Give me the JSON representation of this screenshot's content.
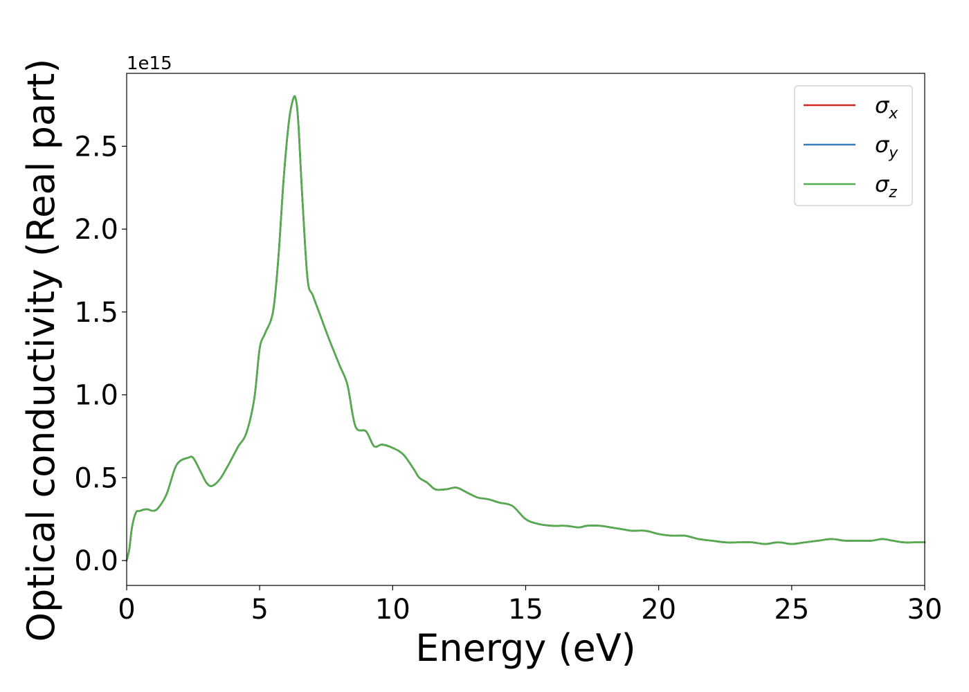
{
  "chart_data": {
    "type": "line",
    "xlabel": "Energy (eV)",
    "ylabel": "Optical conductivity (Real part)",
    "y_offset_label": "1e15",
    "y_scale_factor": 1000000000000000.0,
    "xlim": [
      0,
      30
    ],
    "ylim": [
      -0.15,
      2.94
    ],
    "x_ticks": [
      0,
      5,
      10,
      15,
      20,
      25,
      30
    ],
    "y_ticks": [
      0.0,
      0.5,
      1.0,
      1.5,
      2.0,
      2.5
    ],
    "x_tick_labels": [
      "0",
      "5",
      "10",
      "15",
      "20",
      "25",
      "30"
    ],
    "y_tick_labels": [
      "0.0",
      "0.5",
      "1.0",
      "1.5",
      "2.0",
      "2.5"
    ],
    "grid": false,
    "legend_position": "top-right",
    "x": [
      0,
      0.1,
      0.2,
      0.35,
      0.5,
      0.75,
      1.0,
      1.2,
      1.5,
      1.8,
      2.0,
      2.3,
      2.5,
      2.8,
      3.0,
      3.2,
      3.5,
      3.8,
      4.0,
      4.2,
      4.5,
      4.8,
      5.0,
      5.2,
      5.5,
      5.7,
      5.9,
      6.1,
      6.25,
      6.35,
      6.45,
      6.6,
      6.8,
      7.0,
      7.3,
      7.6,
      8.0,
      8.3,
      8.6,
      9.0,
      9.3,
      9.6,
      10.0,
      10.4,
      10.8,
      11.0,
      11.3,
      11.6,
      12.0,
      12.4,
      12.8,
      13.2,
      13.6,
      14.0,
      14.5,
      15.0,
      15.5,
      16.0,
      16.5,
      17.0,
      17.3,
      17.8,
      18.2,
      18.6,
      19.0,
      19.5,
      20.0,
      20.5,
      21.0,
      21.5,
      22.0,
      22.5,
      23.0,
      23.5,
      24.0,
      24.5,
      25.0,
      25.5,
      26.0,
      26.5,
      27.0,
      27.5,
      28.0,
      28.4,
      28.8,
      29.2,
      29.6,
      30.0
    ],
    "series": [
      {
        "name": "σx",
        "label_base": "σ",
        "label_sub": "x",
        "color": "#d62728",
        "values": [
          0.0,
          0.07,
          0.2,
          0.29,
          0.3,
          0.31,
          0.3,
          0.32,
          0.4,
          0.55,
          0.6,
          0.62,
          0.62,
          0.53,
          0.47,
          0.45,
          0.49,
          0.57,
          0.63,
          0.69,
          0.77,
          0.98,
          1.28,
          1.37,
          1.5,
          1.82,
          2.3,
          2.65,
          2.78,
          2.79,
          2.65,
          2.2,
          1.7,
          1.6,
          1.47,
          1.34,
          1.18,
          1.06,
          0.81,
          0.78,
          0.69,
          0.7,
          0.68,
          0.64,
          0.55,
          0.5,
          0.47,
          0.43,
          0.43,
          0.44,
          0.41,
          0.38,
          0.37,
          0.35,
          0.33,
          0.25,
          0.22,
          0.21,
          0.21,
          0.2,
          0.21,
          0.21,
          0.2,
          0.19,
          0.18,
          0.18,
          0.16,
          0.15,
          0.15,
          0.13,
          0.12,
          0.11,
          0.11,
          0.11,
          0.1,
          0.11,
          0.1,
          0.11,
          0.12,
          0.13,
          0.12,
          0.12,
          0.12,
          0.13,
          0.12,
          0.11,
          0.11,
          0.11
        ]
      },
      {
        "name": "σy",
        "label_base": "σ",
        "label_sub": "y",
        "color": "#3a7ab8",
        "values": [
          0.0,
          0.07,
          0.2,
          0.29,
          0.3,
          0.31,
          0.3,
          0.32,
          0.4,
          0.55,
          0.6,
          0.62,
          0.62,
          0.53,
          0.47,
          0.45,
          0.49,
          0.57,
          0.63,
          0.69,
          0.77,
          0.98,
          1.28,
          1.37,
          1.5,
          1.82,
          2.3,
          2.65,
          2.78,
          2.79,
          2.65,
          2.2,
          1.7,
          1.6,
          1.47,
          1.34,
          1.18,
          1.06,
          0.81,
          0.78,
          0.69,
          0.7,
          0.68,
          0.64,
          0.55,
          0.5,
          0.47,
          0.43,
          0.43,
          0.44,
          0.41,
          0.38,
          0.37,
          0.35,
          0.33,
          0.25,
          0.22,
          0.21,
          0.21,
          0.2,
          0.21,
          0.21,
          0.2,
          0.19,
          0.18,
          0.18,
          0.16,
          0.15,
          0.15,
          0.13,
          0.12,
          0.11,
          0.11,
          0.11,
          0.1,
          0.11,
          0.1,
          0.11,
          0.12,
          0.13,
          0.12,
          0.12,
          0.12,
          0.13,
          0.12,
          0.11,
          0.11,
          0.11
        ]
      },
      {
        "name": "σz",
        "label_base": "σ",
        "label_sub": "z",
        "color": "#55ac4c",
        "values": [
          0.0,
          0.07,
          0.2,
          0.29,
          0.3,
          0.31,
          0.3,
          0.32,
          0.4,
          0.55,
          0.6,
          0.62,
          0.62,
          0.53,
          0.47,
          0.45,
          0.49,
          0.57,
          0.63,
          0.69,
          0.77,
          0.98,
          1.28,
          1.37,
          1.5,
          1.82,
          2.3,
          2.65,
          2.78,
          2.79,
          2.65,
          2.2,
          1.7,
          1.6,
          1.47,
          1.34,
          1.18,
          1.06,
          0.81,
          0.78,
          0.69,
          0.7,
          0.68,
          0.64,
          0.55,
          0.5,
          0.47,
          0.43,
          0.43,
          0.44,
          0.41,
          0.38,
          0.37,
          0.35,
          0.33,
          0.25,
          0.22,
          0.21,
          0.21,
          0.2,
          0.21,
          0.21,
          0.2,
          0.19,
          0.18,
          0.18,
          0.16,
          0.15,
          0.15,
          0.13,
          0.12,
          0.11,
          0.11,
          0.11,
          0.1,
          0.11,
          0.1,
          0.11,
          0.12,
          0.13,
          0.12,
          0.12,
          0.12,
          0.13,
          0.12,
          0.11,
          0.11,
          0.11
        ]
      }
    ]
  }
}
